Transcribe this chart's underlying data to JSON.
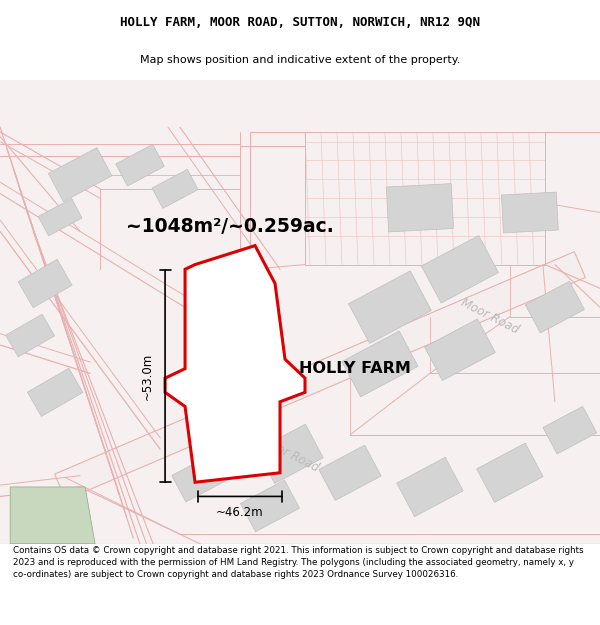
{
  "title_line1": "HOLLY FARM, MOOR ROAD, SUTTON, NORWICH, NR12 9QN",
  "title_line2": "Map shows position and indicative extent of the property.",
  "area_text": "~1048m²/~0.259ac.",
  "width_label": "~46.2m",
  "height_label": "~53.0m",
  "property_label": "HOLLY FARM",
  "road_label": "Moor Road",
  "footer_text": "Contains OS data © Crown copyright and database right 2021. This information is subject to Crown copyright and database rights 2023 and is reproduced with the permission of HM Land Registry. The polygons (including the associated geometry, namely x, y co-ordinates) are subject to Crown copyright and database rights 2023 Ordnance Survey 100026316.",
  "map_bg": "#f7f0f0",
  "road_line_color": "#e8b0b0",
  "road_line_color2": "#f0c8c8",
  "gray_fill": "#d4d4d4",
  "gray_stroke": "#c0c0c0",
  "green_fill": "#c8d8be",
  "red_poly_color": "#dd0000",
  "white": "#ffffff",
  "black": "#000000",
  "road_text_color": "#bbbbbb",
  "title_font": "DejaVu Sans",
  "footer_fontsize": 6.3
}
